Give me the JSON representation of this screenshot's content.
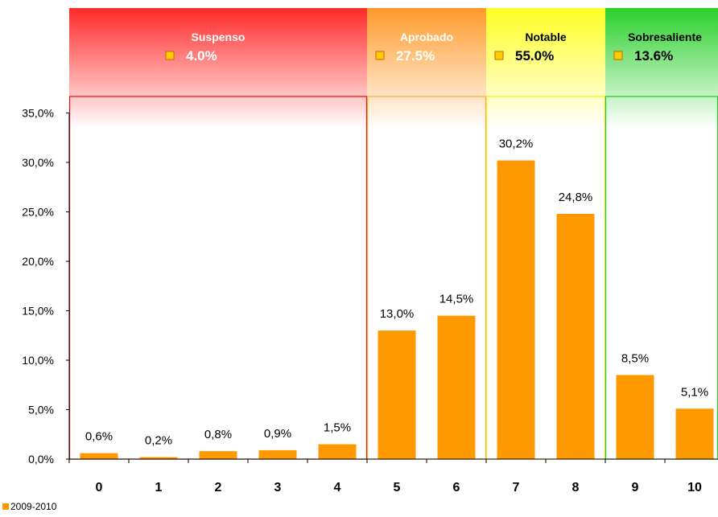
{
  "chart_data": {
    "type": "bar",
    "categories": [
      "0",
      "1",
      "2",
      "3",
      "4",
      "5",
      "6",
      "7",
      "8",
      "9",
      "10"
    ],
    "series": [
      {
        "name": "2009-2010",
        "values": [
          0.6,
          0.2,
          0.8,
          0.9,
          1.5,
          13.0,
          14.5,
          30.2,
          24.8,
          8.5,
          5.1
        ],
        "data_labels": [
          "0,6%",
          "0,2%",
          "0,8%",
          "0,9%",
          "1,5%",
          "13,0%",
          "14,5%",
          "30,2%",
          "24,8%",
          "8,5%",
          "5,1%"
        ],
        "color": "#ff9900"
      }
    ],
    "ylim": [
      0,
      35
    ],
    "y_ticks": [
      0,
      5,
      10,
      15,
      20,
      25,
      30,
      35
    ],
    "y_tick_labels": [
      "0,0%",
      "5,0%",
      "10,0%",
      "15,0%",
      "20,0%",
      "25,0%",
      "30,0%",
      "35,0%"
    ],
    "legend_position": "bottom-left",
    "grade_bands": [
      {
        "name": "Suspenso",
        "percent": "4.0%",
        "from": 0,
        "to": 4,
        "color": "#ff2a2a",
        "border_color": "#dd1111",
        "name_color": "#ffffff",
        "percent_color": "#ffffff"
      },
      {
        "name": "Aprobado",
        "percent": "27.5%",
        "from": 5,
        "to": 6,
        "color": "#ff9a2a",
        "border_color": "#ffaa33",
        "name_color": "#ffffff",
        "percent_color": "#ffffff"
      },
      {
        "name": "Notable",
        "percent": "55.0%",
        "from": 7,
        "to": 8,
        "color": "#ffff22",
        "border_color": "#eeee22",
        "name_color": "#000000",
        "percent_color": "#000000"
      },
      {
        "name": "Sobresaliente",
        "percent": "13.6%",
        "from": 9,
        "to": 10,
        "color": "#2ad02a",
        "border_color": "#22cc22",
        "name_color": "#000000",
        "percent_color": "#000000"
      }
    ]
  }
}
